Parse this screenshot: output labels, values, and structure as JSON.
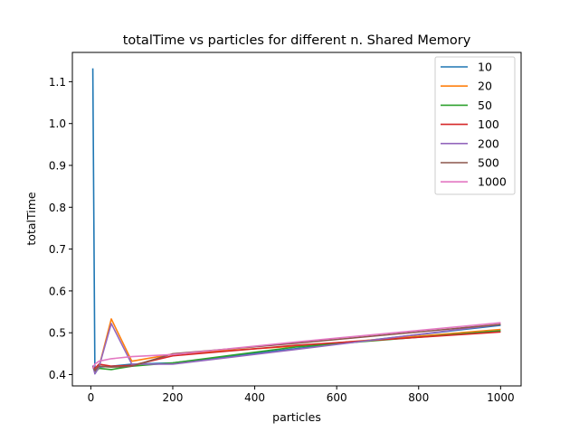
{
  "chart_data": {
    "type": "line",
    "title": "totalTime vs particles for different n. Shared Memory",
    "xlabel": "particles",
    "ylabel": "totalTime",
    "xlim": [
      -45,
      1050
    ],
    "ylim": [
      0.373,
      1.17
    ],
    "xticks": [
      0,
      200,
      400,
      600,
      800,
      1000
    ],
    "yticks": [
      0.4,
      0.5,
      0.6,
      0.7,
      0.8,
      0.9,
      1.0,
      1.1
    ],
    "xtick_labels": [
      "0",
      "200",
      "400",
      "600",
      "800",
      "1000"
    ],
    "ytick_labels": [
      "0.4",
      "0.5",
      "0.6",
      "0.7",
      "0.8",
      "0.9",
      "1.0",
      "1.1"
    ],
    "grid": false,
    "legend_position": "top-right",
    "series": [
      {
        "name": "10",
        "color": "#1f77b4",
        "x": [
          5,
          10,
          20,
          50,
          100,
          200,
          500,
          1000
        ],
        "y": [
          1.132,
          0.402,
          0.418,
          0.42,
          0.425,
          0.428,
          0.462,
          0.518
        ]
      },
      {
        "name": "20",
        "color": "#ff7f0e",
        "x": [
          5,
          10,
          20,
          50,
          100,
          200,
          500,
          1000
        ],
        "y": [
          0.418,
          0.41,
          0.418,
          0.533,
          0.432,
          0.449,
          0.468,
          0.508
        ]
      },
      {
        "name": "50",
        "color": "#2ca02c",
        "x": [
          5,
          10,
          20,
          50,
          100,
          200,
          500,
          1000
        ],
        "y": [
          0.42,
          0.405,
          0.415,
          0.412,
          0.42,
          0.428,
          0.466,
          0.505
        ]
      },
      {
        "name": "100",
        "color": "#d62728",
        "x": [
          5,
          10,
          20,
          50,
          100,
          200,
          500,
          1000
        ],
        "y": [
          0.416,
          0.415,
          0.425,
          0.42,
          0.422,
          0.445,
          0.47,
          0.502
        ]
      },
      {
        "name": "200",
        "color": "#9467bd",
        "x": [
          5,
          10,
          20,
          50,
          100,
          200,
          500,
          1000
        ],
        "y": [
          0.422,
          0.402,
          0.418,
          0.522,
          0.425,
          0.425,
          0.46,
          0.52
        ]
      },
      {
        "name": "500",
        "color": "#8c564b",
        "x": [
          5,
          10,
          20,
          50,
          100,
          200,
          500,
          1000
        ],
        "y": [
          0.42,
          0.41,
          0.42,
          0.418,
          0.42,
          0.45,
          0.475,
          0.52
        ]
      },
      {
        "name": "1000",
        "color": "#e377c2",
        "x": [
          5,
          10,
          20,
          50,
          100,
          200,
          500,
          1000
        ],
        "y": [
          0.415,
          0.425,
          0.432,
          0.438,
          0.443,
          0.448,
          0.478,
          0.524
        ]
      }
    ]
  }
}
